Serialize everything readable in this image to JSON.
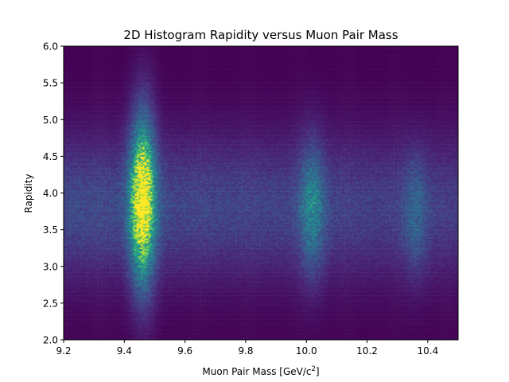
{
  "chart_data": {
    "type": "heatmap",
    "title": "2D Histogram Rapidity versus Muon Pair Mass",
    "xlabel": "Muon Pair Mass [GeV/c",
    "xlabel_sup": "2",
    "xlabel_end": "]",
    "ylabel": "Rapidity",
    "xlim": [
      9.2,
      10.5
    ],
    "ylim": [
      2.0,
      6.0
    ],
    "x_ticks": [
      {
        "value": 9.2,
        "label": "9.2"
      },
      {
        "value": 9.4,
        "label": "9.4"
      },
      {
        "value": 9.6,
        "label": "9.6"
      },
      {
        "value": 9.8,
        "label": "9.8"
      },
      {
        "value": 10.0,
        "label": "10.0"
      },
      {
        "value": 10.2,
        "label": "10.2"
      },
      {
        "value": 10.4,
        "label": "10.4"
      }
    ],
    "y_ticks": [
      {
        "value": 2.0,
        "label": "2.0"
      },
      {
        "value": 2.5,
        "label": "2.5"
      },
      {
        "value": 3.0,
        "label": "3.0"
      },
      {
        "value": 3.5,
        "label": "3.5"
      },
      {
        "value": 4.0,
        "label": "4.0"
      },
      {
        "value": 4.5,
        "label": "4.5"
      },
      {
        "value": 5.0,
        "label": "5.0"
      },
      {
        "value": 5.5,
        "label": "5.5"
      },
      {
        "value": 6.0,
        "label": "6.0"
      }
    ],
    "colormap": "viridis",
    "grid": false,
    "peaks": [
      {
        "mass": 9.46,
        "rapidity_center": 3.9,
        "relative_intensity": 1.0
      },
      {
        "mass": 10.02,
        "rapidity_center": 3.8,
        "relative_intensity": 0.35
      },
      {
        "mass": 10.36,
        "rapidity_center": 3.7,
        "relative_intensity": 0.18
      }
    ],
    "background_rapidity_center": 3.8,
    "background_relative_intensity": 0.22,
    "bins": {
      "x": 200,
      "y": 200
    }
  }
}
